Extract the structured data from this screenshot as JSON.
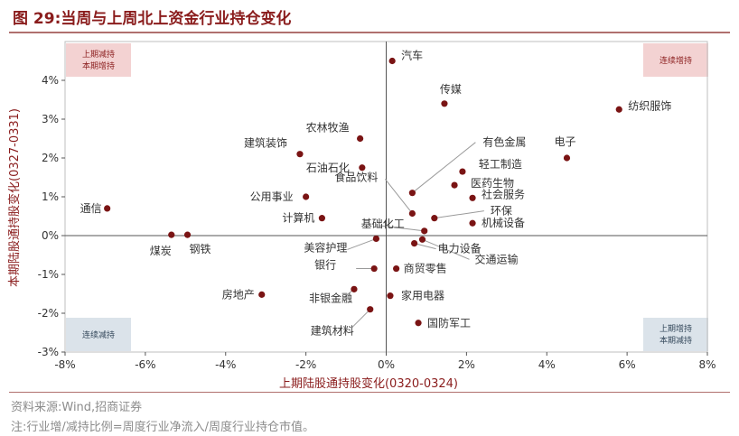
{
  "figure": {
    "title": "图 29:当周与上周北上资金行业持仓变化",
    "source": "资料来源:Wind,招商证券",
    "note": "注:行业增/减持比例=周度行业净流入/周度行业持仓市值。"
  },
  "chart_data": {
    "type": "scatter",
    "xlabel": "上期陆股通持股变化(0320-0324)",
    "ylabel": "本期陆股通持股变化(0327-0331)",
    "xlim": [
      -8,
      8
    ],
    "ylim": [
      -3,
      5
    ],
    "xticks": [
      "-8%",
      "-6%",
      "-4%",
      "-2%",
      "0%",
      "2%",
      "4%",
      "6%",
      "8%"
    ],
    "yticks": [
      "-3%",
      "-2%",
      "-1%",
      "0%",
      "1%",
      "2%",
      "3%",
      "4%"
    ],
    "quadrants": {
      "top_left": [
        "上期减持",
        "本期增持"
      ],
      "top_right": [
        "连续增持"
      ],
      "bottom_left": [
        "连续减持"
      ],
      "bottom_right": [
        "上期增持",
        "本期减持"
      ]
    },
    "colors": {
      "marker": "#7a1414",
      "accent": "#8a1c1c",
      "quad_top": "#f3d2d2",
      "quad_bottom": "#dbe3ea"
    },
    "points": [
      {
        "label": "汽车",
        "x": 0.15,
        "y": 4.5
      },
      {
        "label": "传媒",
        "x": 1.45,
        "y": 3.4
      },
      {
        "label": "纺织服饰",
        "x": 5.8,
        "y": 3.25
      },
      {
        "label": "农林牧渔",
        "x": -0.65,
        "y": 2.5
      },
      {
        "label": "建筑装饰",
        "x": -2.15,
        "y": 2.1
      },
      {
        "label": "石油石化",
        "x": -0.6,
        "y": 1.75
      },
      {
        "label": "电子",
        "x": 4.5,
        "y": 2.0
      },
      {
        "label": "有色金属",
        "x": 0.65,
        "y": 1.1
      },
      {
        "label": "轻工制造",
        "x": 1.9,
        "y": 1.65
      },
      {
        "label": "医药生物",
        "x": 1.7,
        "y": 1.3
      },
      {
        "label": "社会服务",
        "x": 2.15,
        "y": 0.97
      },
      {
        "label": "公用事业",
        "x": -2.0,
        "y": 1.0
      },
      {
        "label": "食品饮料",
        "x": 0.65,
        "y": 0.57
      },
      {
        "label": "环保",
        "x": 1.2,
        "y": 0.45
      },
      {
        "label": "机械设备",
        "x": 2.15,
        "y": 0.32
      },
      {
        "label": "计算机",
        "x": -1.6,
        "y": 0.45
      },
      {
        "label": "基础化工",
        "x": 0.95,
        "y": 0.12
      },
      {
        "label": "通信",
        "x": -6.95,
        "y": 0.7
      },
      {
        "label": "煤炭",
        "x": -5.35,
        "y": 0.02
      },
      {
        "label": "钢铁",
        "x": -4.95,
        "y": 0.02
      },
      {
        "label": "美容护理",
        "x": -0.25,
        "y": -0.08
      },
      {
        "label": "电力设备",
        "x": 0.7,
        "y": -0.2
      },
      {
        "label": "交通运输",
        "x": 0.9,
        "y": -0.1
      },
      {
        "label": "银行",
        "x": -0.3,
        "y": -0.85
      },
      {
        "label": "商贸零售",
        "x": 0.25,
        "y": -0.85
      },
      {
        "label": "房地产",
        "x": -3.1,
        "y": -1.52
      },
      {
        "label": "非银金融",
        "x": -0.8,
        "y": -1.38
      },
      {
        "label": "家用电器",
        "x": 0.1,
        "y": -1.55
      },
      {
        "label": "建筑材料",
        "x": -0.4,
        "y": -1.9
      },
      {
        "label": "国防军工",
        "x": 0.8,
        "y": -2.25
      }
    ]
  }
}
